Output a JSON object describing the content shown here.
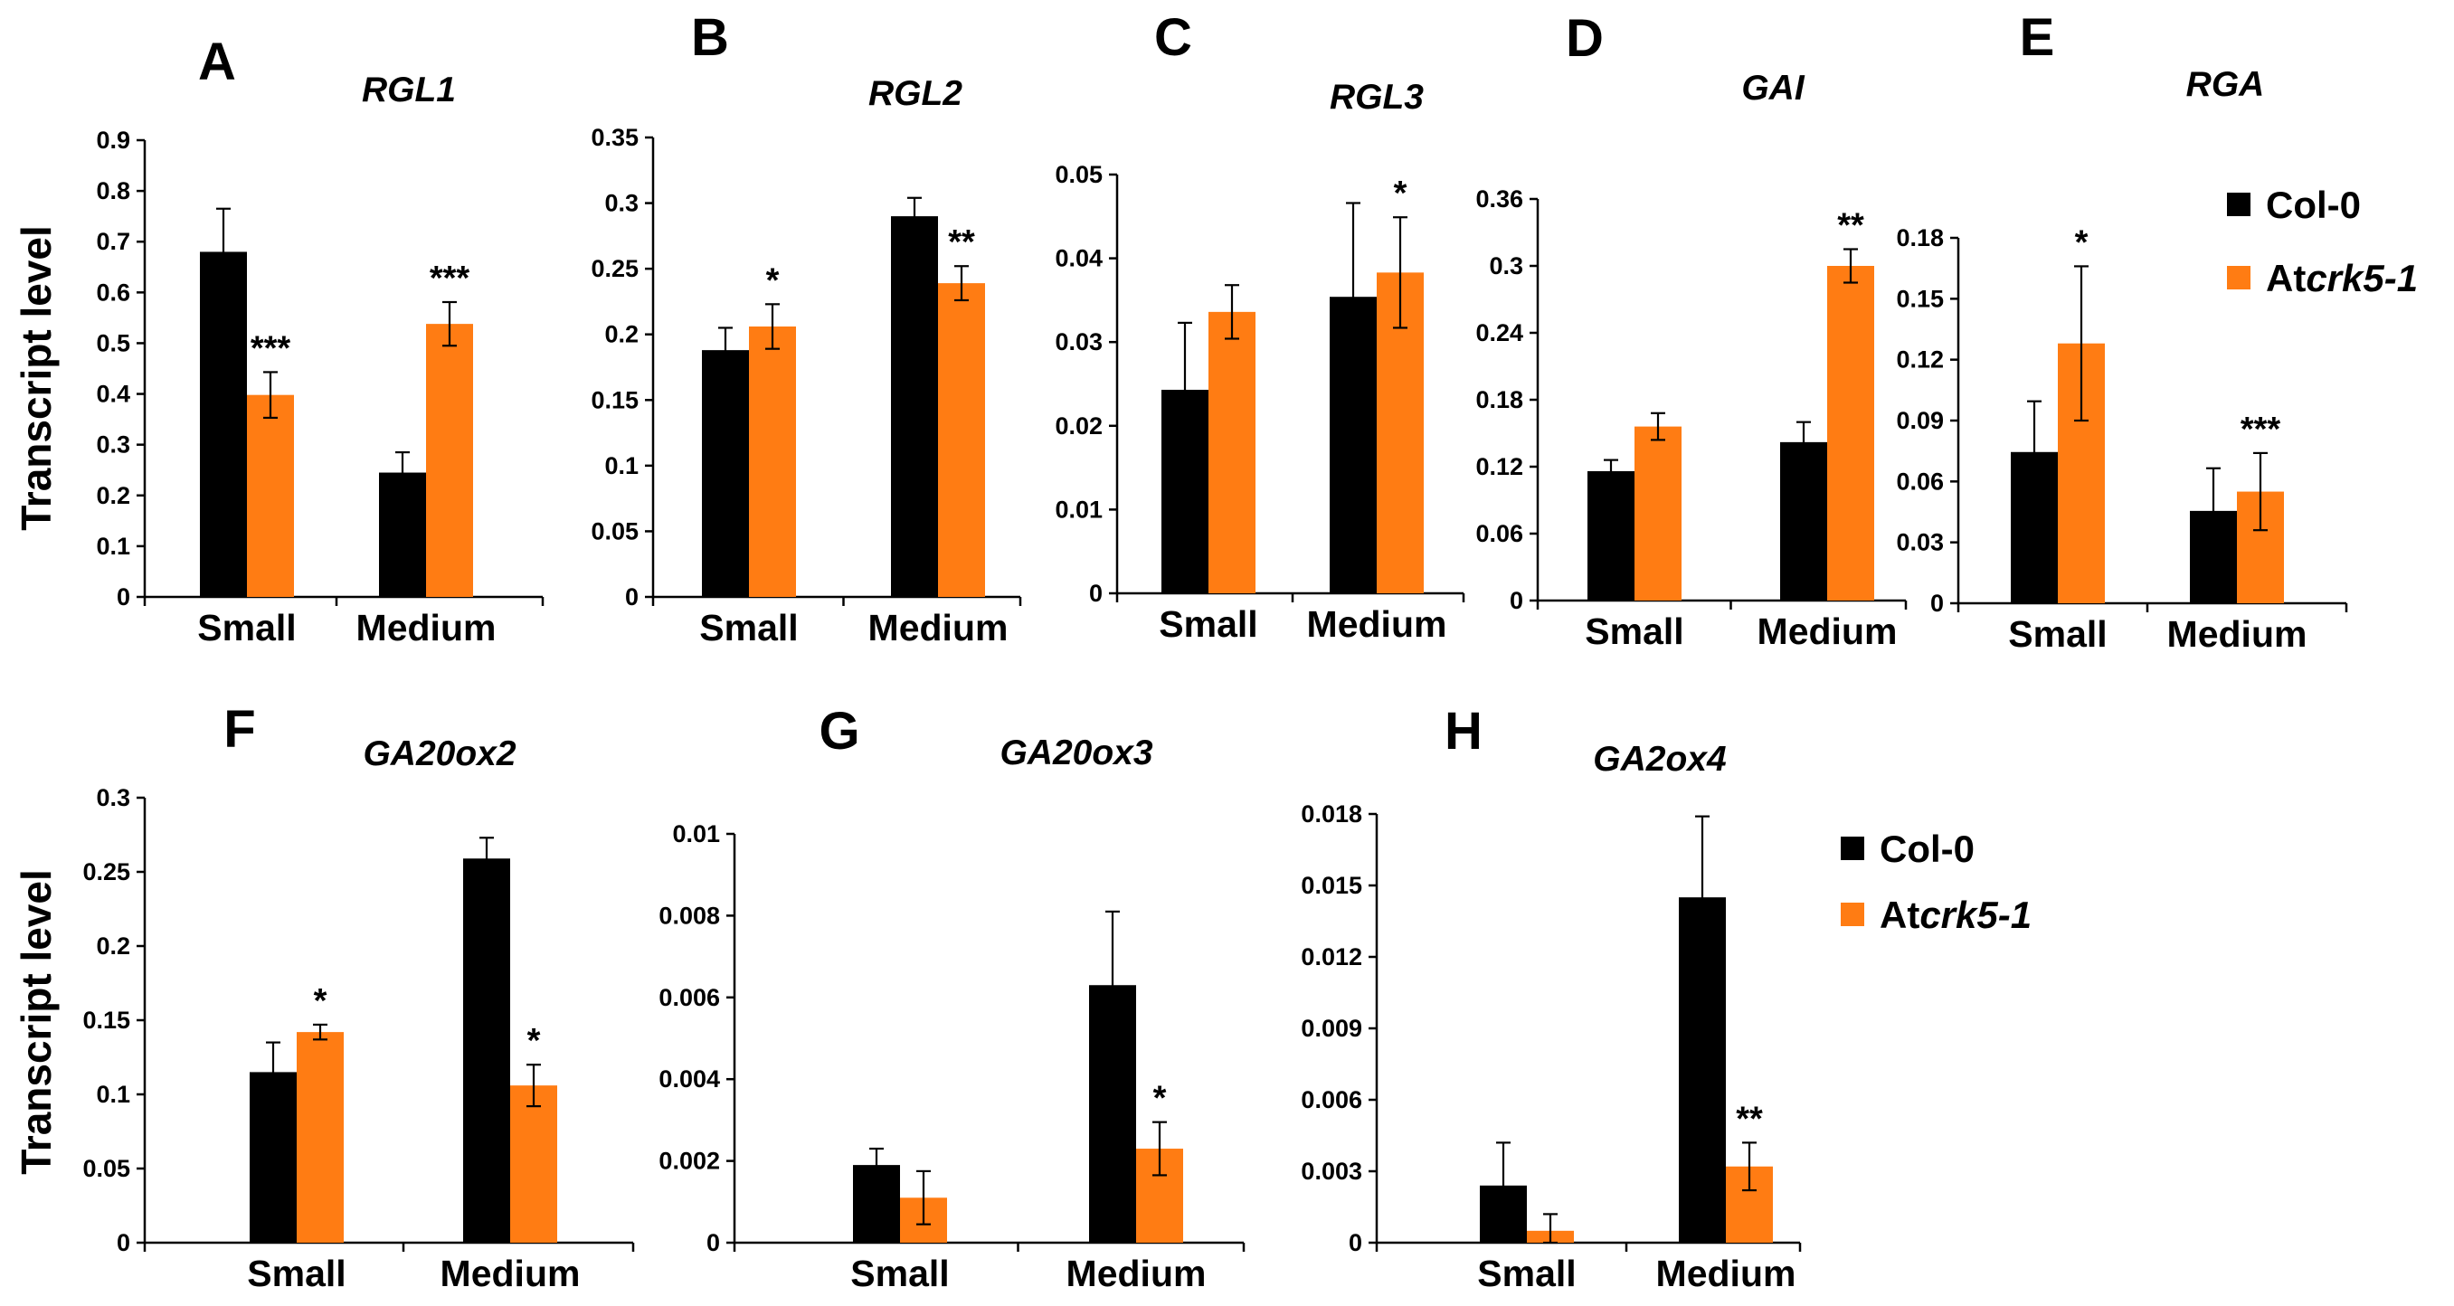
{
  "colors": {
    "col0": "#000000",
    "atcrk": "#ff7c13"
  },
  "y_axis_label": "Transcript level",
  "legend": {
    "entries": [
      {
        "name": "Col-0",
        "color": "#000000"
      },
      {
        "prefix": "At",
        "italic": "crk5-1",
        "color": "#ff7c13"
      }
    ]
  },
  "chart_data": [
    {
      "type": "bar",
      "panel": "A",
      "title": "RGL1",
      "categories": [
        "Small",
        "Medium"
      ],
      "series": [
        {
          "name": "Col-0",
          "values": [
            0.68,
            0.245
          ],
          "errors": [
            0.085,
            0.04
          ]
        },
        {
          "name": "Atcrk5-1",
          "values": [
            0.398,
            0.538
          ],
          "errors": [
            0.045,
            0.043
          ]
        }
      ],
      "significance": [
        {
          "category": "Small",
          "label": "***"
        },
        {
          "category": "Medium",
          "label": "***"
        }
      ],
      "ylim": [
        0,
        0.9
      ],
      "ticks": [
        0,
        0.1,
        0.2,
        0.3,
        0.4,
        0.5,
        0.6,
        0.7,
        0.8,
        0.9
      ],
      "tick_labels": [
        "0",
        "0.1",
        "0.2",
        "0.3",
        "0.4",
        "0.5",
        "0.6",
        "0.7",
        "0.8",
        "0.9"
      ]
    },
    {
      "type": "bar",
      "panel": "B",
      "title": "RGL2",
      "categories": [
        "Small",
        "Medium"
      ],
      "series": [
        {
          "name": "Col-0",
          "values": [
            0.188,
            0.29
          ],
          "errors": [
            0.017,
            0.014
          ]
        },
        {
          "name": "Atcrk5-1",
          "values": [
            0.206,
            0.239
          ],
          "errors": [
            0.017,
            0.013
          ]
        }
      ],
      "significance": [
        {
          "category": "Small",
          "label": "*"
        },
        {
          "category": "Medium",
          "label": "**"
        }
      ],
      "ylim": [
        0,
        0.35
      ],
      "ticks": [
        0,
        0.05,
        0.1,
        0.15,
        0.2,
        0.25,
        0.3,
        0.35
      ],
      "tick_labels": [
        "0",
        "0.05",
        "0.1",
        "0.15",
        "0.2",
        "0.25",
        "0.3",
        "0.35"
      ]
    },
    {
      "type": "bar",
      "panel": "C",
      "title": "RGL3",
      "categories": [
        "Small",
        "Medium"
      ],
      "series": [
        {
          "name": "Col-0",
          "values": [
            0.0243,
            0.0354
          ],
          "errors": [
            0.008,
            0.0112
          ]
        },
        {
          "name": "Atcrk5-1",
          "values": [
            0.0336,
            0.0383
          ],
          "errors": [
            0.0032,
            0.0066
          ]
        }
      ],
      "significance": [
        {
          "category": "Small",
          "label": ""
        },
        {
          "category": "Medium",
          "label": "*"
        }
      ],
      "ylim": [
        0,
        0.05
      ],
      "ticks": [
        0,
        0.01,
        0.02,
        0.03,
        0.04,
        0.05
      ],
      "tick_labels": [
        "0",
        "0.01",
        "0.02",
        "0.03",
        "0.04",
        "0.05"
      ]
    },
    {
      "type": "bar",
      "panel": "D",
      "title": "GAI",
      "categories": [
        "Small",
        "Medium"
      ],
      "series": [
        {
          "name": "Col-0",
          "values": [
            0.116,
            0.142
          ],
          "errors": [
            0.01,
            0.018
          ]
        },
        {
          "name": "Atcrk5-1",
          "values": [
            0.156,
            0.3
          ],
          "errors": [
            0.012,
            0.015
          ]
        }
      ],
      "significance": [
        {
          "category": "Small",
          "label": ""
        },
        {
          "category": "Medium",
          "label": "**"
        }
      ],
      "ylim": [
        0,
        0.36
      ],
      "ticks": [
        0,
        0.06,
        0.12,
        0.18,
        0.24,
        0.3,
        0.36
      ],
      "tick_labels": [
        "0",
        "0.06",
        "0.12",
        "0.18",
        "0.24",
        "0.3",
        "0.36"
      ]
    },
    {
      "type": "bar",
      "panel": "E",
      "title": "RGA",
      "categories": [
        "Small",
        "Medium"
      ],
      "series": [
        {
          "name": "Col-0",
          "values": [
            0.0745,
            0.0455
          ],
          "errors": [
            0.025,
            0.021
          ]
        },
        {
          "name": "Atcrk5-1",
          "values": [
            0.128,
            0.055
          ],
          "errors": [
            0.038,
            0.019
          ]
        }
      ],
      "significance": [
        {
          "category": "Small",
          "label": "*"
        },
        {
          "category": "Medium",
          "label": "***"
        }
      ],
      "ylim": [
        0,
        0.18
      ],
      "ticks": [
        0,
        0.03,
        0.06,
        0.09,
        0.12,
        0.15,
        0.18
      ],
      "tick_labels": [
        "0",
        "0.03",
        "0.06",
        "0.09",
        "0.12",
        "0.15",
        "0.18"
      ]
    },
    {
      "type": "bar",
      "panel": "F",
      "title": "GA20ox2",
      "categories": [
        "Small",
        "Medium"
      ],
      "series": [
        {
          "name": "Col-0",
          "values": [
            0.115,
            0.259
          ],
          "errors": [
            0.02,
            0.014
          ]
        },
        {
          "name": "Atcrk5-1",
          "values": [
            0.142,
            0.106
          ],
          "errors": [
            0.005,
            0.014
          ]
        }
      ],
      "significance": [
        {
          "category": "Small",
          "label": "*"
        },
        {
          "category": "Medium",
          "label": "*"
        }
      ],
      "ylim": [
        0,
        0.3
      ],
      "ticks": [
        0,
        0.05,
        0.1,
        0.15,
        0.2,
        0.25,
        0.3
      ],
      "tick_labels": [
        "0",
        "0.05",
        "0.1",
        "0.15",
        "0.2",
        "0.25",
        "0.3"
      ]
    },
    {
      "type": "bar",
      "panel": "G",
      "title": "GA20ox3",
      "categories": [
        "Small",
        "Medium"
      ],
      "series": [
        {
          "name": "Col-0",
          "values": [
            0.0019,
            0.0063
          ],
          "errors": [
            0.0004,
            0.0018
          ]
        },
        {
          "name": "Atcrk5-1",
          "values": [
            0.0011,
            0.0023
          ],
          "errors": [
            0.00065,
            0.00065
          ]
        }
      ],
      "significance": [
        {
          "category": "Small",
          "label": ""
        },
        {
          "category": "Medium",
          "label": "*"
        }
      ],
      "ylim": [
        0,
        0.01
      ],
      "ticks": [
        0,
        0.002,
        0.004,
        0.006,
        0.008,
        0.01
      ],
      "tick_labels": [
        "0",
        "0.002",
        "0.004",
        "0.006",
        "0.008",
        "0.01"
      ]
    },
    {
      "type": "bar",
      "panel": "H",
      "title": "GA2ox4",
      "categories": [
        "Small",
        "Medium"
      ],
      "series": [
        {
          "name": "Col-0",
          "values": [
            0.0024,
            0.0145
          ],
          "errors": [
            0.0018,
            0.0034
          ]
        },
        {
          "name": "Atcrk5-1",
          "values": [
            0.0005,
            0.0032
          ],
          "errors": [
            0.0007,
            0.001
          ]
        }
      ],
      "significance": [
        {
          "category": "Small",
          "label": ""
        },
        {
          "category": "Medium",
          "label": "**"
        }
      ],
      "ylim": [
        0,
        0.018
      ],
      "ticks": [
        0,
        0.003,
        0.006,
        0.009,
        0.012,
        0.015,
        0.018
      ],
      "tick_labels": [
        "0",
        "0.003",
        "0.006",
        "0.009",
        "0.012",
        "0.015",
        "0.018"
      ]
    }
  ]
}
